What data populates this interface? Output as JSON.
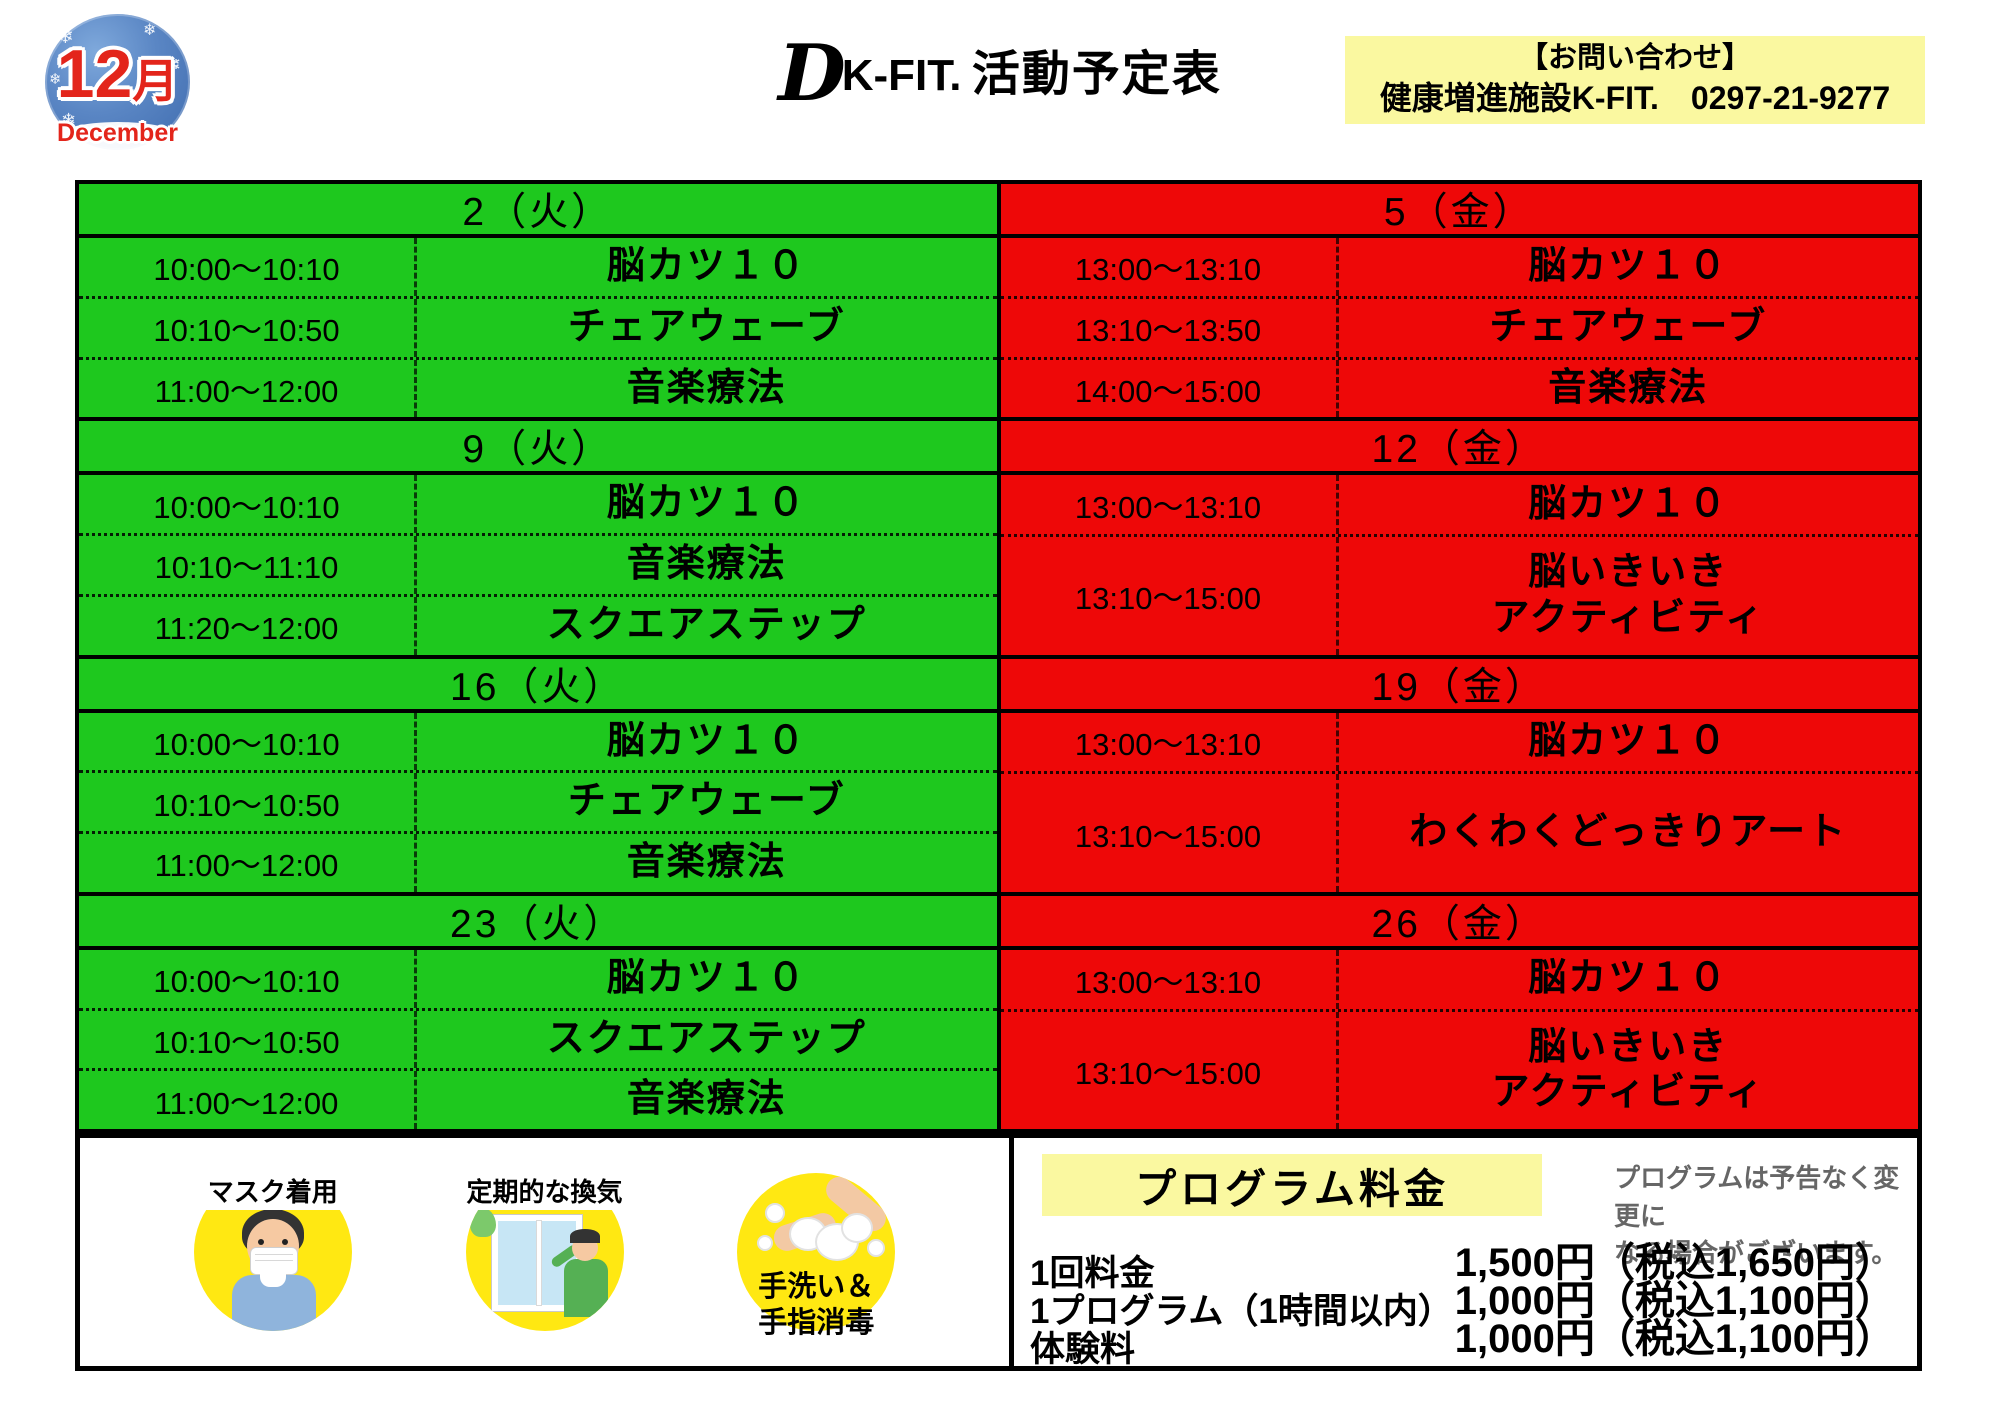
{
  "colors": {
    "green": "#1EC81E",
    "red": "#EE0808",
    "highlight_yellow": "#FAF8A0",
    "badge_blue": "#4878B8",
    "brand_red": "#E3251B",
    "icon_yellow": "#FFE812",
    "notice_gray": "#666666"
  },
  "header": {
    "month_badge": {
      "month_number": "12",
      "month_kanji": "月",
      "month_en": "December"
    },
    "title": {
      "logo_d": "D",
      "brand": "K-FIT.",
      "suffix": "活動予定表"
    },
    "contact": {
      "line1": "【お問い合わせ】",
      "line2": "健康増進施設K-FIT.　0297-21-9277"
    }
  },
  "schedule": {
    "days": [
      {
        "date": "2（火）",
        "color": "green",
        "rows": [
          {
            "time": "10:00～10:10",
            "activity": "脳カツ１０"
          },
          {
            "time": "10:10～10:50",
            "activity": "チェアウェーブ"
          },
          {
            "time": "11:00～12:00",
            "activity": "音楽療法"
          }
        ]
      },
      {
        "date": "5（金）",
        "color": "red",
        "rows": [
          {
            "time": "13:00～13:10",
            "activity": "脳カツ１０"
          },
          {
            "time": "13:10～13:50",
            "activity": "チェアウェーブ"
          },
          {
            "time": "14:00～15:00",
            "activity": "音楽療法"
          }
        ]
      },
      {
        "date": "9（火）",
        "color": "green",
        "rows": [
          {
            "time": "10:00～10:10",
            "activity": "脳カツ１０"
          },
          {
            "time": "10:10～11:10",
            "activity": "音楽療法"
          },
          {
            "time": "11:20～12:00",
            "activity": "スクエアステップ"
          }
        ]
      },
      {
        "date": "12（金）",
        "color": "red",
        "rows": [
          {
            "time": "13:00～13:10",
            "activity": "脳カツ１０"
          },
          {
            "time": "13:10～15:00",
            "activity": "脳いきいき\nアクティビティ"
          }
        ]
      },
      {
        "date": "16（火）",
        "color": "green",
        "rows": [
          {
            "time": "10:00～10:10",
            "activity": "脳カツ１０"
          },
          {
            "time": "10:10～10:50",
            "activity": "チェアウェーブ"
          },
          {
            "time": "11:00～12:00",
            "activity": "音楽療法"
          }
        ]
      },
      {
        "date": "19（金）",
        "color": "red",
        "rows": [
          {
            "time": "13:00～13:10",
            "activity": "脳カツ１０"
          },
          {
            "time": "13:10～15:00",
            "activity": "わくわくどっきりアート"
          }
        ]
      },
      {
        "date": "23（火）",
        "color": "green",
        "rows": [
          {
            "time": "10:00～10:10",
            "activity": "脳カツ１０"
          },
          {
            "time": "10:10～10:50",
            "activity": "スクエアステップ"
          },
          {
            "time": "11:00～12:00",
            "activity": "音楽療法"
          }
        ]
      },
      {
        "date": "26（金）",
        "color": "red",
        "rows": [
          {
            "time": "13:00～13:10",
            "activity": "脳カツ１０"
          },
          {
            "time": "13:10～15:00",
            "activity": "脳いきいき\nアクティビティ"
          }
        ]
      }
    ]
  },
  "footer": {
    "guidelines": [
      {
        "label": "マスク着用"
      },
      {
        "label": "定期的な換気"
      },
      {
        "label": "手洗い＆\n手指消毒"
      }
    ],
    "pricing": {
      "title": "プログラム料金",
      "notice": "プログラムは予告なく変更に\nなる場合がございます。",
      "items": [
        {
          "label": "1回料金",
          "price": "1,500円（税込1,650円）"
        },
        {
          "label": "1プログラム（1時間以内）",
          "price": "1,000円（税込1,100円）"
        },
        {
          "label": "体験料",
          "price": "1,000円（税込1,100円）"
        }
      ]
    }
  }
}
